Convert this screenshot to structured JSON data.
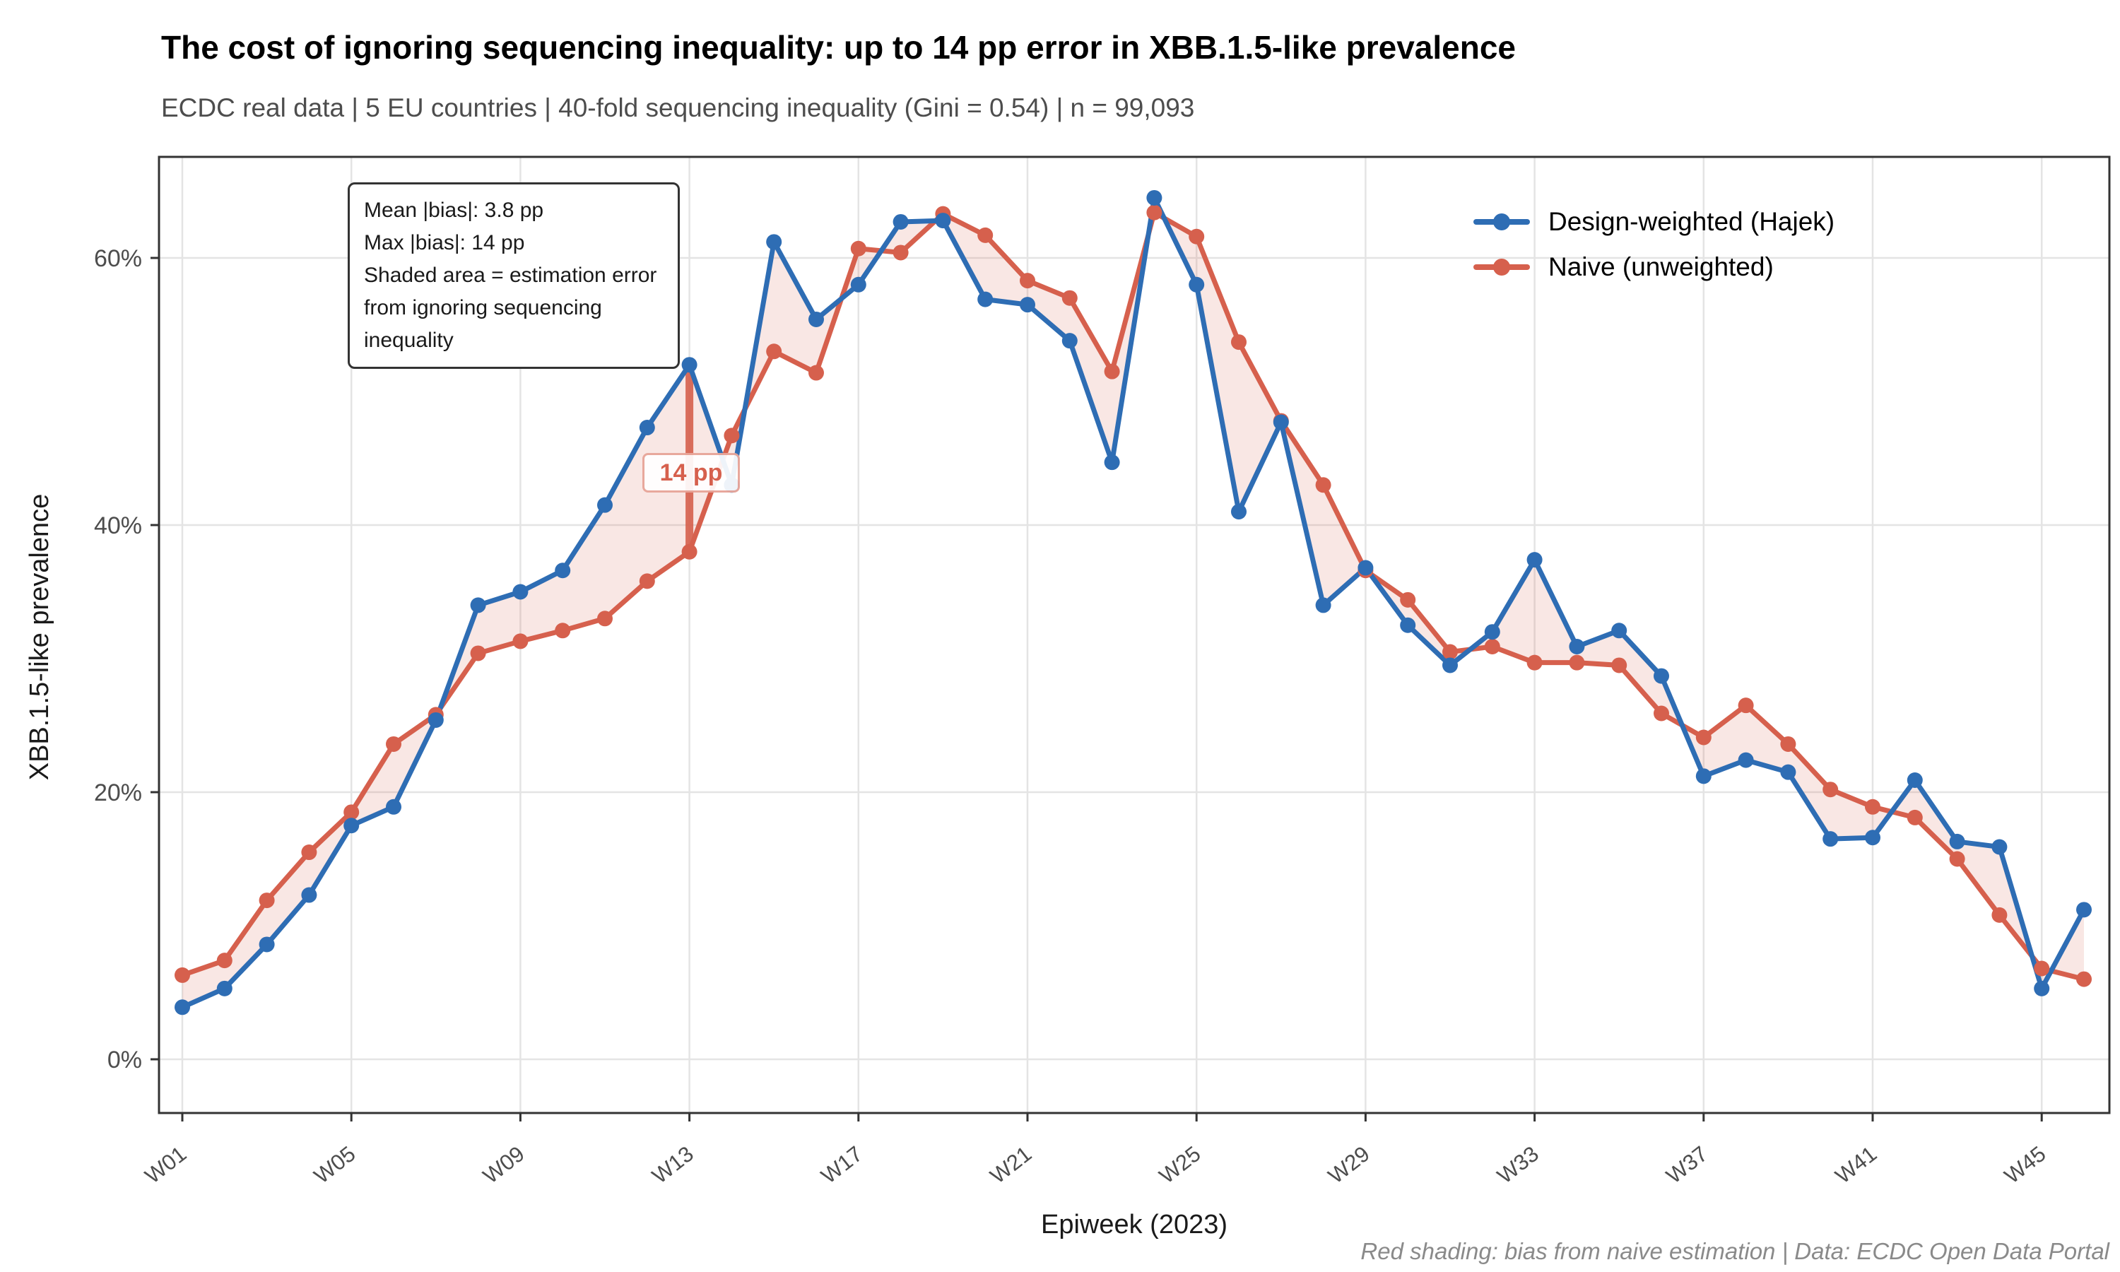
{
  "title": "The cost of ignoring sequencing inequality: up to 14 pp error in XBB.1.5-like prevalence",
  "subtitle": "ECDC real data | 5 EU countries | 40-fold sequencing inequality (Gini = 0.54) | n = 99,093",
  "caption": "Red shading: bias from naive estimation | Data: ECDC Open Data Portal",
  "annotation_box": {
    "line1": "Mean |bias|: 3.8 pp",
    "line2": "Max |bias|: 14 pp",
    "line3": "Shaded area = estimation error",
    "line4": "from ignoring sequencing inequality"
  },
  "max_bias_callout": {
    "label": "14 pp",
    "week": "W13",
    "from_value": 38.0,
    "to_value": 52.0
  },
  "colors": {
    "hajek_blue": "#2e6db4",
    "naive_red": "#d6604d",
    "ribbon_fill": "rgba(214,96,77,0.15)",
    "gridline": "#e4e4e4",
    "panel_border": "#333333",
    "tick_text": "#4d4d4d"
  },
  "chart_data": {
    "type": "line",
    "title": "The cost of ignoring sequencing inequality: up to 14 pp error in XBB.1.5-like prevalence",
    "xlabel": "Epiweek (2023)",
    "ylabel": "XBB.1.5-like prevalence",
    "ylim": [
      -4,
      67.5
    ],
    "grid": true,
    "legend_position": "top-right-inside",
    "y_ticks": [
      {
        "value": 0,
        "label": "0%"
      },
      {
        "value": 20,
        "label": "20%"
      },
      {
        "value": 40,
        "label": "40%"
      },
      {
        "value": 60,
        "label": "60%"
      }
    ],
    "x_tick_weeks": [
      1,
      5,
      9,
      13,
      17,
      21,
      25,
      29,
      33,
      37,
      41,
      45
    ],
    "x_tick_labels": [
      "W01",
      "W05",
      "W09",
      "W13",
      "W17",
      "W21",
      "W25",
      "W29",
      "W33",
      "W37",
      "W41",
      "W45"
    ],
    "categories": [
      "W01",
      "W02",
      "W03",
      "W04",
      "W05",
      "W06",
      "W07",
      "W08",
      "W09",
      "W10",
      "W11",
      "W12",
      "W13",
      "W14",
      "W15",
      "W16",
      "W17",
      "W18",
      "W19",
      "W20",
      "W21",
      "W22",
      "W23",
      "W24",
      "W25",
      "W26",
      "W27",
      "W28",
      "W29",
      "W30",
      "W31",
      "W32",
      "W33",
      "W34",
      "W35",
      "W36",
      "W37",
      "W38",
      "W39",
      "W40",
      "W41",
      "W42",
      "W43",
      "W44",
      "W45",
      "W46"
    ],
    "series": [
      {
        "name": "Design-weighted (Hajek)",
        "color": "#2e6db4",
        "values": [
          3.9,
          5.3,
          8.6,
          12.3,
          17.5,
          18.9,
          25.4,
          34.0,
          35.0,
          36.6,
          41.5,
          47.3,
          52.0,
          43.0,
          61.2,
          55.4,
          58.0,
          62.7,
          62.8,
          56.9,
          56.5,
          53.8,
          44.7,
          64.5,
          58.0,
          41.0,
          47.7,
          34.0,
          36.8,
          32.5,
          29.5,
          32.0,
          37.4,
          30.9,
          32.1,
          28.7,
          21.2,
          22.4,
          21.5,
          16.5,
          16.6,
          20.9,
          16.3,
          15.9,
          5.3,
          11.2
        ]
      },
      {
        "name": "Naive (unweighted)",
        "color": "#d6604d",
        "values": [
          6.3,
          7.4,
          11.9,
          15.5,
          18.5,
          23.6,
          25.8,
          30.4,
          31.3,
          32.1,
          33.0,
          35.8,
          38.0,
          46.7,
          53.0,
          51.4,
          60.7,
          60.4,
          63.3,
          61.7,
          58.3,
          57.0,
          51.5,
          63.4,
          61.6,
          53.7,
          47.8,
          43.0,
          36.6,
          34.4,
          30.5,
          30.9,
          29.7,
          29.7,
          29.5,
          25.9,
          24.1,
          26.5,
          23.6,
          20.2,
          18.9,
          18.1,
          15.0,
          10.8,
          6.8,
          6.0
        ]
      }
    ],
    "ribbon_between_series": true
  }
}
